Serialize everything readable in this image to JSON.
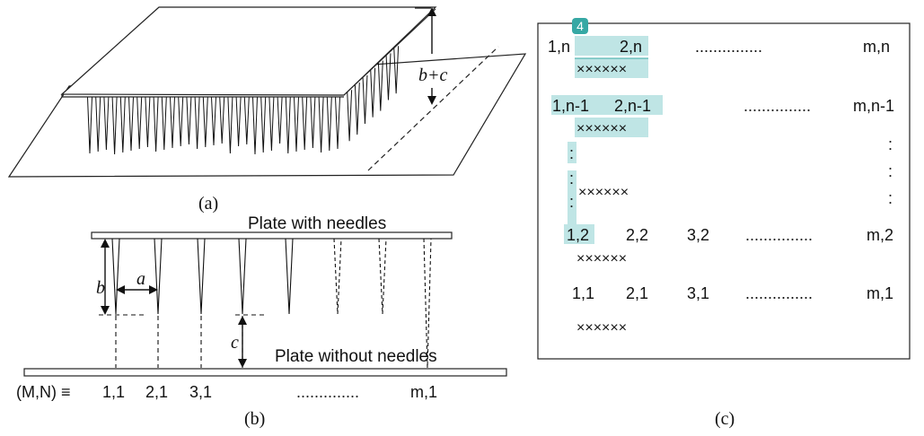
{
  "panel_a": {
    "caption": "(a)",
    "dimension_label": "b+c"
  },
  "panel_b": {
    "caption": "(b)",
    "top_plate_label": "Plate with needles",
    "bottom_plate_label": "Plate without needles",
    "dim_a": "a",
    "dim_b": "b",
    "dim_c": "c",
    "grid_prefix": "(M,N) ≡",
    "positions": [
      "1,1",
      "2,1",
      "3,1",
      "..............",
      "m,1"
    ]
  },
  "panel_c": {
    "caption": "(c)",
    "badge": "4",
    "rows": [
      {
        "labels": [
          "1,n",
          "2,n",
          "...............",
          "m,n"
        ],
        "marks": "××××××"
      },
      {
        "labels": [
          "1,n-1",
          "2,n-1",
          "...............",
          "m,n-1"
        ],
        "marks": "××××××"
      },
      {
        "labels": [
          ":",
          ":"
        ],
        "marks": ""
      },
      {
        "labels": [
          ":",
          ":"
        ],
        "marks": ""
      },
      {
        "labels": [
          ":",
          ":"
        ],
        "marks": "××××××"
      },
      {
        "labels": [
          "1,2",
          "2,2",
          "3,2",
          "...............",
          "m,2"
        ],
        "marks": "××××××"
      },
      {
        "labels": [
          "1,1",
          "2,1",
          "3,1",
          "...............",
          "m,1"
        ],
        "marks": "××××××"
      }
    ]
  },
  "colors": {
    "highlight": "#bfe5e5",
    "badge": "#36a8a4"
  }
}
